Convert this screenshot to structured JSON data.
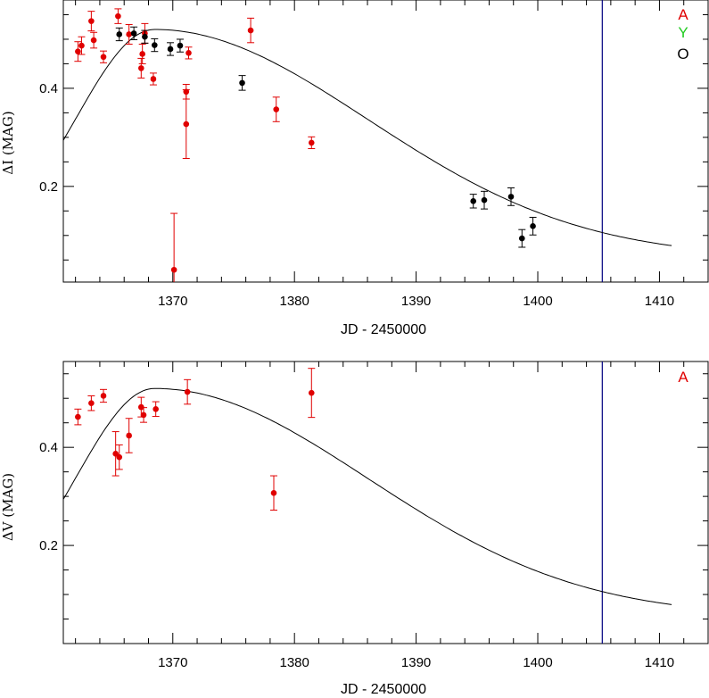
{
  "colors": {
    "A": "#e00000",
    "Y": "#22cc22",
    "O": "#000000",
    "vline": "#000080"
  },
  "chart_data": [
    {
      "type": "scatter",
      "xlabel": "JD - 2450000",
      "ylabel": "ΔI (MAG)",
      "xlim": [
        1361,
        1414
      ],
      "ylim": [
        0.005,
        0.58
      ],
      "xticks": [
        1370,
        1380,
        1390,
        1400,
        1410
      ],
      "yticks": [
        0.2,
        0.4
      ],
      "vline_x": 1405.3,
      "legend": {
        "placement": "top-right",
        "entries": [
          "A",
          "Y",
          "O"
        ]
      },
      "series": [
        {
          "name": "A",
          "points": [
            {
              "x": 1362.2,
              "y": 0.475,
              "err": 0.02
            },
            {
              "x": 1362.5,
              "y": 0.487,
              "err": 0.018
            },
            {
              "x": 1363.3,
              "y": 0.537,
              "err": 0.02
            },
            {
              "x": 1363.5,
              "y": 0.498,
              "err": 0.016
            },
            {
              "x": 1364.3,
              "y": 0.464,
              "err": 0.012
            },
            {
              "x": 1365.5,
              "y": 0.547,
              "err": 0.015
            },
            {
              "x": 1366.4,
              "y": 0.51,
              "err": 0.02
            },
            {
              "x": 1367.4,
              "y": 0.441,
              "err": 0.02
            },
            {
              "x": 1367.5,
              "y": 0.47,
              "err": 0.02
            },
            {
              "x": 1367.7,
              "y": 0.512,
              "err": 0.02
            },
            {
              "x": 1368.4,
              "y": 0.419,
              "err": 0.012
            },
            {
              "x": 1371.1,
              "y": 0.393,
              "err": 0.015
            },
            {
              "x": 1371.1,
              "y": 0.327,
              "err": 0.07
            },
            {
              "x": 1371.3,
              "y": 0.472,
              "err": 0.012
            },
            {
              "x": 1376.4,
              "y": 0.518,
              "err": 0.025
            },
            {
              "x": 1378.5,
              "y": 0.357,
              "err": 0.025
            },
            {
              "x": 1381.4,
              "y": 0.289,
              "err": 0.012
            },
            {
              "x": 1370.1,
              "y": 0.03,
              "err": 0.115
            }
          ]
        },
        {
          "name": "O",
          "points": [
            {
              "x": 1365.6,
              "y": 0.51,
              "err": 0.013
            },
            {
              "x": 1366.8,
              "y": 0.512,
              "err": 0.013
            },
            {
              "x": 1367.7,
              "y": 0.505,
              "err": 0.013
            },
            {
              "x": 1368.5,
              "y": 0.488,
              "err": 0.013
            },
            {
              "x": 1369.8,
              "y": 0.48,
              "err": 0.013
            },
            {
              "x": 1370.6,
              "y": 0.487,
              "err": 0.013
            },
            {
              "x": 1375.7,
              "y": 0.411,
              "err": 0.015
            },
            {
              "x": 1394.7,
              "y": 0.17,
              "err": 0.014
            },
            {
              "x": 1395.6,
              "y": 0.172,
              "err": 0.018
            },
            {
              "x": 1397.8,
              "y": 0.179,
              "err": 0.018
            },
            {
              "x": 1398.7,
              "y": 0.094,
              "err": 0.018
            },
            {
              "x": 1399.6,
              "y": 0.119,
              "err": 0.018
            }
          ]
        }
      ]
    },
    {
      "type": "scatter",
      "xlabel": "JD - 2450000",
      "ylabel": "ΔV (MAG)",
      "xlim": [
        1361,
        1414
      ],
      "ylim": [
        0.0,
        0.575
      ],
      "xticks": [
        1370,
        1380,
        1390,
        1400,
        1410
      ],
      "yticks": [
        0.2,
        0.4
      ],
      "vline_x": 1405.3,
      "legend": {
        "placement": "top-right",
        "entries": [
          "A"
        ]
      },
      "series": [
        {
          "name": "A",
          "points": [
            {
              "x": 1362.2,
              "y": 0.462,
              "err": 0.016
            },
            {
              "x": 1363.3,
              "y": 0.49,
              "err": 0.015
            },
            {
              "x": 1364.3,
              "y": 0.505,
              "err": 0.013
            },
            {
              "x": 1365.3,
              "y": 0.387,
              "err": 0.045
            },
            {
              "x": 1365.6,
              "y": 0.38,
              "err": 0.025
            },
            {
              "x": 1366.4,
              "y": 0.424,
              "err": 0.035
            },
            {
              "x": 1367.4,
              "y": 0.482,
              "err": 0.02
            },
            {
              "x": 1367.6,
              "y": 0.466,
              "err": 0.015
            },
            {
              "x": 1368.6,
              "y": 0.478,
              "err": 0.015
            },
            {
              "x": 1371.2,
              "y": 0.513,
              "err": 0.025
            },
            {
              "x": 1378.3,
              "y": 0.307,
              "err": 0.035
            },
            {
              "x": 1381.4,
              "y": 0.511,
              "err": 0.05
            }
          ]
        }
      ]
    }
  ]
}
